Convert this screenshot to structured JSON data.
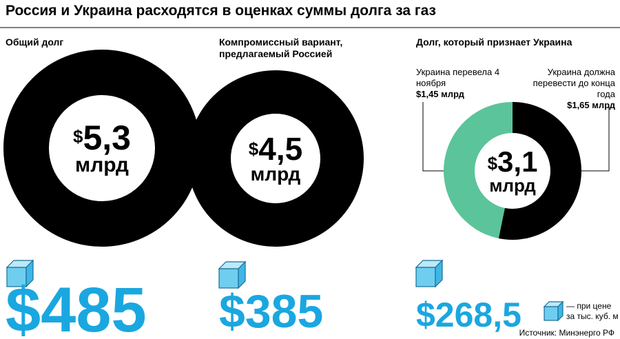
{
  "title": "Россия и Украина расходятся в оценках суммы долга за газ",
  "currency": "$",
  "unit": "млрд",
  "chart_data": [
    {
      "type": "pie",
      "title": "Общий долг",
      "values": [
        5.3
      ],
      "value_labels": [
        "5,3"
      ],
      "colors": [
        "#000000"
      ],
      "price": {
        "value": 485,
        "label": "$485"
      }
    },
    {
      "type": "pie",
      "title": "Компромиссный вариант, предлагаемый Россией",
      "values": [
        4.5
      ],
      "value_labels": [
        "4,5"
      ],
      "colors": [
        "#000000"
      ],
      "price": {
        "value": 385,
        "label": "$385"
      }
    },
    {
      "type": "pie",
      "title": "Долг, который признает Украина",
      "categories": [
        "Украина перевела 4 ноября",
        "Украина должна перевести до конца года"
      ],
      "values": [
        1.45,
        1.65
      ],
      "value_labels": [
        "$1,45 млрд",
        "$1,65 млрд"
      ],
      "colors": [
        "#5cc49a",
        "#000000"
      ],
      "total": {
        "value": 3.1,
        "label": "3,1"
      },
      "price": {
        "value": 268.5,
        "label": "$268,5"
      }
    }
  ],
  "legend": "— при цене за тыс. куб. м",
  "source": "Источник: Минэнерго РФ"
}
